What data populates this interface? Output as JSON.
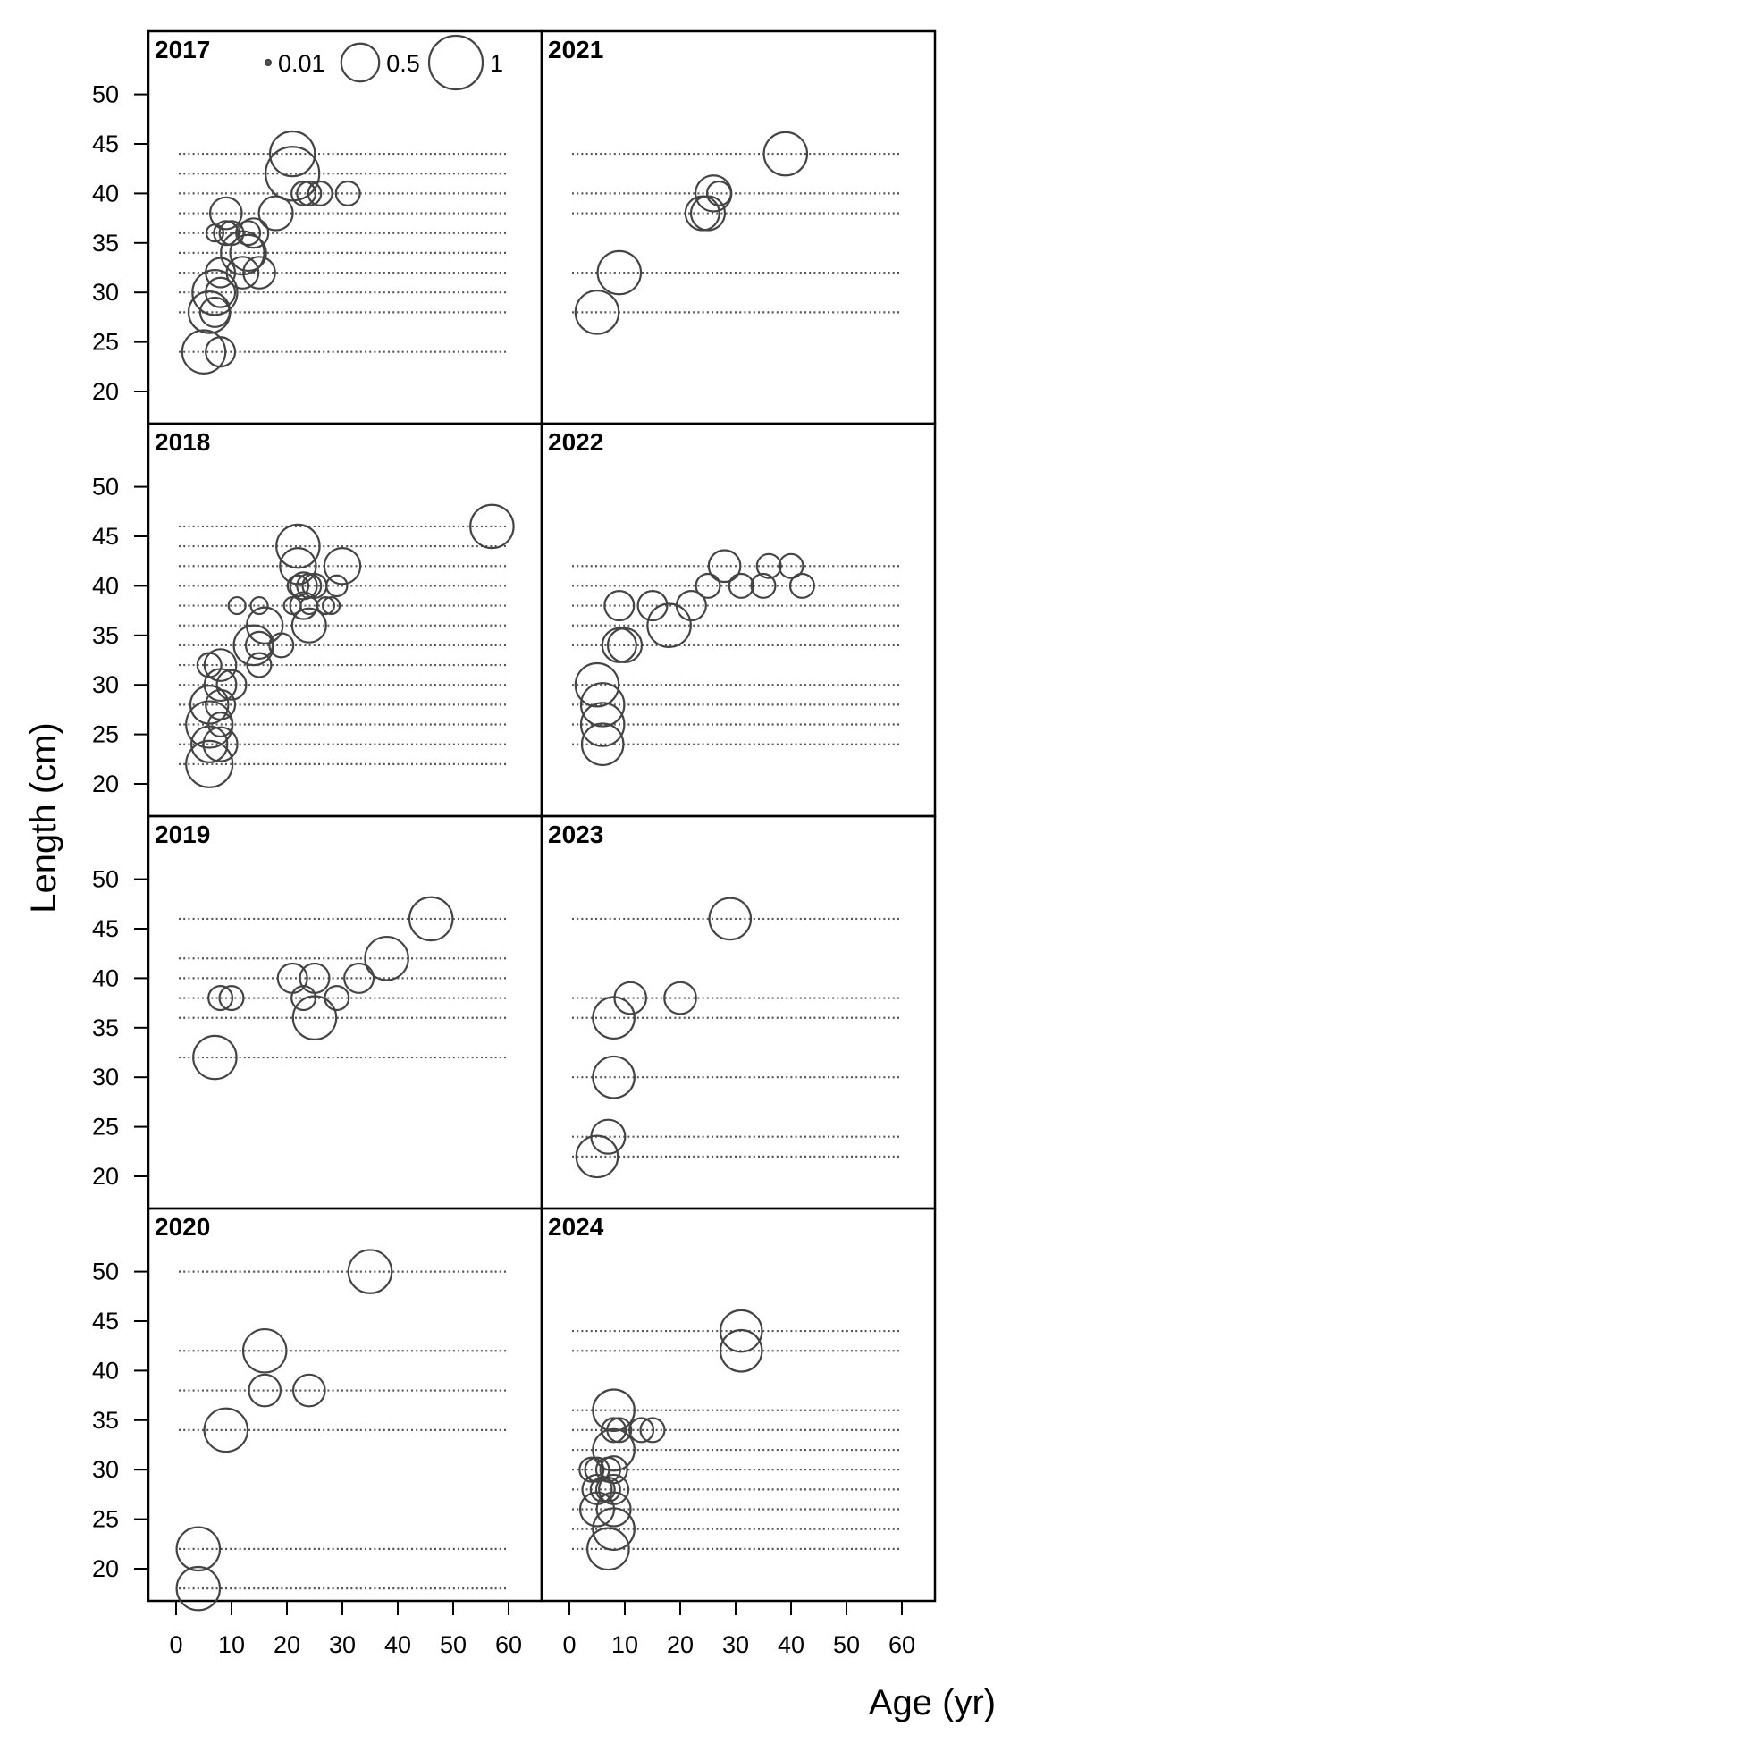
{
  "chart_data": {
    "type": "scatter",
    "subtype": "bubble",
    "xlabel": "Age (yr)",
    "ylabel": "Length (cm)",
    "xlim": [
      -5,
      68
    ],
    "ylim": [
      15,
      55
    ],
    "xticks": [
      0,
      10,
      20,
      30,
      40,
      50,
      60
    ],
    "yticks": [
      20,
      25,
      30,
      35,
      40,
      45,
      50
    ],
    "grid": false,
    "legend": {
      "placement": "top",
      "entries": [
        {
          "label": "0.01",
          "size": 0.01
        },
        {
          "label": "0.5",
          "size": 0.5
        },
        {
          "label": "1",
          "size": 1
        }
      ]
    },
    "panels": [
      {
        "year": "2017",
        "lines": [
          24,
          28,
          30,
          32,
          34,
          36,
          38,
          40,
          42,
          44
        ],
        "points": [
          {
            "age": 5,
            "length": 24,
            "size": 0.65
          },
          {
            "age": 8,
            "length": 24,
            "size": 0.3
          },
          {
            "age": 6,
            "length": 28,
            "size": 0.6
          },
          {
            "age": 7,
            "length": 28,
            "size": 0.3
          },
          {
            "age": 7,
            "length": 30,
            "size": 0.7
          },
          {
            "age": 8,
            "length": 30,
            "size": 0.3
          },
          {
            "age": 8,
            "length": 32,
            "size": 0.3
          },
          {
            "age": 12,
            "length": 32,
            "size": 0.35
          },
          {
            "age": 15,
            "length": 32,
            "size": 0.35
          },
          {
            "age": 12,
            "length": 34,
            "size": 0.65
          },
          {
            "age": 13,
            "length": 34,
            "size": 0.45
          },
          {
            "age": 7,
            "length": 36,
            "size": 0.1
          },
          {
            "age": 9,
            "length": 36,
            "size": 0.2
          },
          {
            "age": 10,
            "length": 36,
            "size": 0.2
          },
          {
            "age": 13,
            "length": 36,
            "size": 0.2
          },
          {
            "age": 14,
            "length": 36,
            "size": 0.3
          },
          {
            "age": 9,
            "length": 38,
            "size": 0.35
          },
          {
            "age": 18,
            "length": 38,
            "size": 0.4
          },
          {
            "age": 23,
            "length": 40,
            "size": 0.2
          },
          {
            "age": 24,
            "length": 40,
            "size": 0.2
          },
          {
            "age": 26,
            "length": 40,
            "size": 0.2
          },
          {
            "age": 31,
            "length": 40,
            "size": 0.2
          },
          {
            "age": 21,
            "length": 42,
            "size": 1.0
          },
          {
            "age": 21,
            "length": 44,
            "size": 0.7
          }
        ]
      },
      {
        "year": "2018",
        "lines": [
          22,
          24,
          26,
          28,
          30,
          32,
          34,
          36,
          38,
          40,
          42,
          44,
          46
        ],
        "points": [
          {
            "age": 6,
            "length": 22,
            "size": 0.75
          },
          {
            "age": 6,
            "length": 24,
            "size": 0.45
          },
          {
            "age": 8,
            "length": 24,
            "size": 0.4
          },
          {
            "age": 6,
            "length": 26,
            "size": 0.75
          },
          {
            "age": 8,
            "length": 26,
            "size": 0.2
          },
          {
            "age": 6,
            "length": 28,
            "size": 0.5
          },
          {
            "age": 8,
            "length": 28,
            "size": 0.3
          },
          {
            "age": 8,
            "length": 30,
            "size": 0.35
          },
          {
            "age": 10,
            "length": 30,
            "size": 0.3
          },
          {
            "age": 6,
            "length": 32,
            "size": 0.2
          },
          {
            "age": 8,
            "length": 32,
            "size": 0.35
          },
          {
            "age": 15,
            "length": 32,
            "size": 0.2
          },
          {
            "age": 14,
            "length": 34,
            "size": 0.55
          },
          {
            "age": 15,
            "length": 34,
            "size": 0.25
          },
          {
            "age": 19,
            "length": 34,
            "size": 0.2
          },
          {
            "age": 16,
            "length": 36,
            "size": 0.45
          },
          {
            "age": 24,
            "length": 36,
            "size": 0.4
          },
          {
            "age": 11,
            "length": 38,
            "size": 0.1
          },
          {
            "age": 15,
            "length": 38,
            "size": 0.1
          },
          {
            "age": 21,
            "length": 38,
            "size": 0.1
          },
          {
            "age": 23,
            "length": 38,
            "size": 0.25
          },
          {
            "age": 24,
            "length": 38,
            "size": 0.1
          },
          {
            "age": 27,
            "length": 38,
            "size": 0.1
          },
          {
            "age": 28,
            "length": 38,
            "size": 0.1
          },
          {
            "age": 22,
            "length": 40,
            "size": 0.15
          },
          {
            "age": 23,
            "length": 40,
            "size": 0.25
          },
          {
            "age": 24,
            "length": 40,
            "size": 0.2
          },
          {
            "age": 25,
            "length": 40,
            "size": 0.2
          },
          {
            "age": 29,
            "length": 40,
            "size": 0.15
          },
          {
            "age": 22,
            "length": 42,
            "size": 0.45
          },
          {
            "age": 30,
            "length": 42,
            "size": 0.45
          },
          {
            "age": 22,
            "length": 44,
            "size": 0.65
          },
          {
            "age": 57,
            "length": 46,
            "size": 0.65
          }
        ]
      },
      {
        "year": "2019",
        "lines": [
          32,
          36,
          38,
          40,
          42,
          46
        ],
        "points": [
          {
            "age": 7,
            "length": 32,
            "size": 0.65
          },
          {
            "age": 25,
            "length": 36,
            "size": 0.65
          },
          {
            "age": 8,
            "length": 38,
            "size": 0.2
          },
          {
            "age": 10,
            "length": 38,
            "size": 0.2
          },
          {
            "age": 23,
            "length": 38,
            "size": 0.2
          },
          {
            "age": 29,
            "length": 38,
            "size": 0.2
          },
          {
            "age": 21,
            "length": 40,
            "size": 0.3
          },
          {
            "age": 25,
            "length": 40,
            "size": 0.3
          },
          {
            "age": 33,
            "length": 40,
            "size": 0.3
          },
          {
            "age": 38,
            "length": 42,
            "size": 0.65
          },
          {
            "age": 46,
            "length": 46,
            "size": 0.65
          }
        ]
      },
      {
        "year": "2020",
        "lines": [
          18,
          22,
          34,
          38,
          42,
          50
        ],
        "points": [
          {
            "age": 4,
            "length": 18,
            "size": 0.65
          },
          {
            "age": 4,
            "length": 22,
            "size": 0.65
          },
          {
            "age": 9,
            "length": 34,
            "size": 0.65
          },
          {
            "age": 16,
            "length": 38,
            "size": 0.35
          },
          {
            "age": 24,
            "length": 38,
            "size": 0.35
          },
          {
            "age": 16,
            "length": 42,
            "size": 0.65
          },
          {
            "age": 35,
            "length": 50,
            "size": 0.65
          }
        ]
      },
      {
        "year": "2021",
        "lines": [
          28,
          32,
          38,
          40,
          44
        ],
        "points": [
          {
            "age": 5,
            "length": 28,
            "size": 0.65
          },
          {
            "age": 9,
            "length": 32,
            "size": 0.65
          },
          {
            "age": 24,
            "length": 38,
            "size": 0.4
          },
          {
            "age": 25,
            "length": 38,
            "size": 0.4
          },
          {
            "age": 26,
            "length": 40,
            "size": 0.45
          },
          {
            "age": 27,
            "length": 40,
            "size": 0.2
          },
          {
            "age": 39,
            "length": 44,
            "size": 0.65
          }
        ]
      },
      {
        "year": "2022",
        "lines": [
          24,
          26,
          28,
          30,
          34,
          36,
          38,
          40,
          42
        ],
        "points": [
          {
            "age": 6,
            "length": 24,
            "size": 0.6
          },
          {
            "age": 6,
            "length": 26,
            "size": 0.65
          },
          {
            "age": 6,
            "length": 28,
            "size": 0.65
          },
          {
            "age": 5,
            "length": 30,
            "size": 0.65
          },
          {
            "age": 9,
            "length": 34,
            "size": 0.4
          },
          {
            "age": 10,
            "length": 34,
            "size": 0.4
          },
          {
            "age": 18,
            "length": 36,
            "size": 0.65
          },
          {
            "age": 9,
            "length": 38,
            "size": 0.3
          },
          {
            "age": 15,
            "length": 38,
            "size": 0.3
          },
          {
            "age": 22,
            "length": 38,
            "size": 0.3
          },
          {
            "age": 25,
            "length": 40,
            "size": 0.2
          },
          {
            "age": 31,
            "length": 40,
            "size": 0.2
          },
          {
            "age": 35,
            "length": 40,
            "size": 0.2
          },
          {
            "age": 42,
            "length": 40,
            "size": 0.2
          },
          {
            "age": 28,
            "length": 42,
            "size": 0.35
          },
          {
            "age": 36,
            "length": 42,
            "size": 0.2
          },
          {
            "age": 40,
            "length": 42,
            "size": 0.2
          }
        ]
      },
      {
        "year": "2023",
        "lines": [
          22,
          24,
          30,
          36,
          38,
          46
        ],
        "points": [
          {
            "age": 5,
            "length": 22,
            "size": 0.6
          },
          {
            "age": 7,
            "length": 24,
            "size": 0.4
          },
          {
            "age": 8,
            "length": 30,
            "size": 0.6
          },
          {
            "age": 8,
            "length": 36,
            "size": 0.6
          },
          {
            "age": 11,
            "length": 38,
            "size": 0.35
          },
          {
            "age": 20,
            "length": 38,
            "size": 0.35
          },
          {
            "age": 29,
            "length": 46,
            "size": 0.6
          }
        ]
      },
      {
        "year": "2024",
        "lines": [
          22,
          24,
          26,
          28,
          30,
          32,
          34,
          36,
          42,
          44
        ],
        "points": [
          {
            "age": 7,
            "length": 22,
            "size": 0.6
          },
          {
            "age": 8,
            "length": 24,
            "size": 0.6
          },
          {
            "age": 5,
            "length": 26,
            "size": 0.4
          },
          {
            "age": 8,
            "length": 26,
            "size": 0.4
          },
          {
            "age": 5,
            "length": 28,
            "size": 0.3
          },
          {
            "age": 6,
            "length": 28,
            "size": 0.2
          },
          {
            "age": 7,
            "length": 28,
            "size": 0.2
          },
          {
            "age": 8,
            "length": 28,
            "size": 0.3
          },
          {
            "age": 4,
            "length": 30,
            "size": 0.2
          },
          {
            "age": 5,
            "length": 30,
            "size": 0.2
          },
          {
            "age": 7,
            "length": 30,
            "size": 0.2
          },
          {
            "age": 8,
            "length": 30,
            "size": 0.25
          },
          {
            "age": 8,
            "length": 32,
            "size": 0.6
          },
          {
            "age": 8,
            "length": 34,
            "size": 0.2
          },
          {
            "age": 9,
            "length": 34,
            "size": 0.2
          },
          {
            "age": 13,
            "length": 34,
            "size": 0.2
          },
          {
            "age": 15,
            "length": 34,
            "size": 0.2
          },
          {
            "age": 8,
            "length": 36,
            "size": 0.6
          },
          {
            "age": 31,
            "length": 42,
            "size": 0.6
          },
          {
            "age": 31,
            "length": 44,
            "size": 0.6
          }
        ]
      }
    ]
  }
}
